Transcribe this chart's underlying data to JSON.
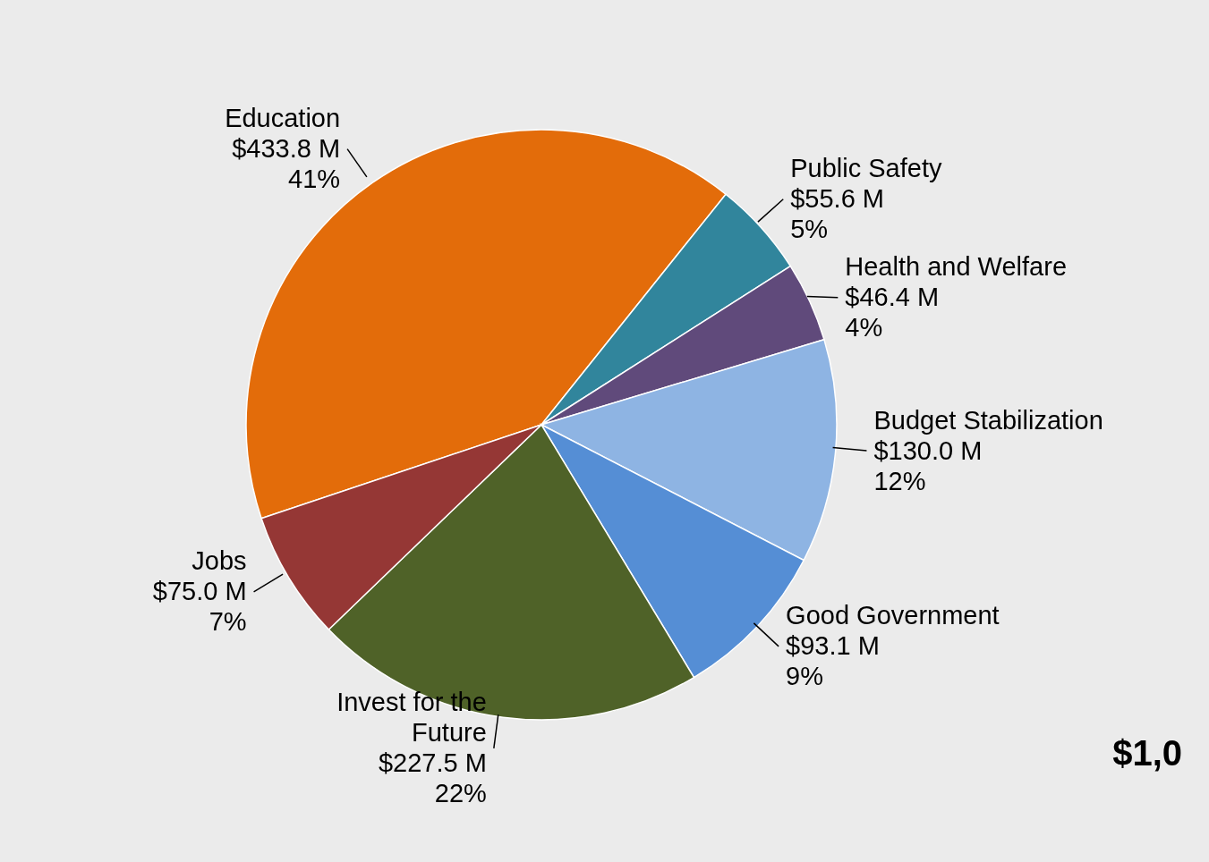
{
  "chart_data": {
    "type": "pie",
    "categories": [
      "Education",
      "Public Safety",
      "Health and Welfare",
      "Budget Stabilization",
      "Good Government",
      "Invest for the Future",
      "Jobs"
    ],
    "values": [
      433.8,
      55.6,
      46.4,
      130.0,
      93.1,
      227.5,
      75.0
    ],
    "value_labels": [
      "$433.8 M",
      "$55.6 M",
      "$46.4 M",
      "$130.0 M",
      "$93.1 M",
      "$227.5 M",
      "$75.0 M"
    ],
    "colors": [
      "#e36c0a",
      "#31859c",
      "#604a7b",
      "#8eb4e3",
      "#558ed5",
      "#4f6228",
      "#953735"
    ],
    "annotations": [
      {
        "text": "41%",
        "x": "Education"
      },
      {
        "text": "5%",
        "x": "Public Safety"
      },
      {
        "text": "4%",
        "x": "Health and Welfare"
      },
      {
        "text": "12%",
        "x": "Budget Stabilization"
      },
      {
        "text": "9%",
        "x": "Good Government"
      },
      {
        "text": "22%",
        "x": "Invest for the Future"
      },
      {
        "text": "7%",
        "x": "Jobs"
      },
      "$1,0"
    ],
    "legend": false
  }
}
